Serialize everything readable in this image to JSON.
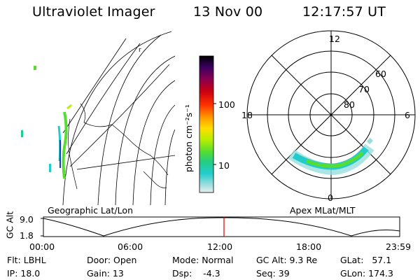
{
  "header": {
    "instrument": "Ultraviolet Imager",
    "date": "13 Nov 00",
    "time": "12:17:57 UT"
  },
  "geo_map": {
    "label": "Geographic Lat/Lon"
  },
  "colorbar": {
    "unit_label": "photon cm⁻²s⁻¹",
    "ticks": [
      "100",
      "10"
    ],
    "colors": [
      "#000000",
      "#3a0060",
      "#8a0050",
      "#cc0010",
      "#ff3300",
      "#ff9900",
      "#ffdd00",
      "#bbee00",
      "#55dd33",
      "#22cc88",
      "#22cccc",
      "#99dddd",
      "#dde8e8"
    ]
  },
  "polar_plot": {
    "label": "Apex MLat/MLT",
    "mlt_labels": {
      "top": "12",
      "left": "18",
      "right": "6",
      "bottom": "0"
    },
    "mlat_labels": [
      "60",
      "70",
      "80"
    ]
  },
  "altitude_plot": {
    "ylabel": "GC Alt",
    "yticks": [
      "9.0",
      "1.8"
    ],
    "xticks": [
      "00:00",
      "06:00",
      "12:00",
      "18:00",
      "23:59"
    ],
    "current_time_marker": "12:17:57",
    "marker_color": "#dd0000"
  },
  "info": {
    "flt": "Flt: LBHL",
    "ip": "IP: 18.0",
    "door": "Door: Open",
    "gain": "Gain: 13",
    "mode": "Mode: Normal",
    "dsp": "Dsp:    -4.3",
    "gc_alt": "GC Alt: 9.3 Re",
    "seq": "Seq: 39",
    "glat": "GLat:   57.1",
    "glon": "GLon: 174.3"
  }
}
